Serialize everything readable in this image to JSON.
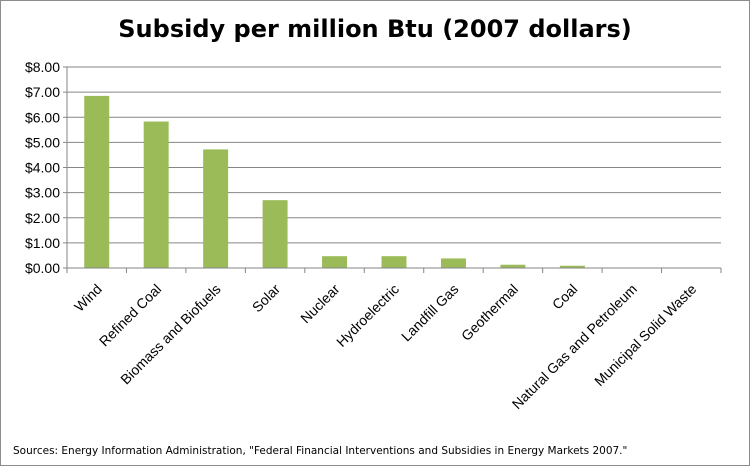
{
  "chart_data": {
    "type": "bar",
    "title": "Subsidy per million Btu (2007 dollars)",
    "categories": [
      "Wind",
      "Refined Coal",
      "Biomass and Biofuels",
      "Solar",
      "Nuclear",
      "Hydroelectric",
      "Landfill Gas",
      "Geothermal",
      "Coal",
      "Natural Gas and Petroleum",
      "Municipal Solid Waste"
    ],
    "values": [
      6.85,
      5.83,
      4.72,
      2.7,
      0.47,
      0.47,
      0.38,
      0.13,
      0.09,
      0.0,
      0.0
    ],
    "ylim": [
      0,
      8
    ],
    "yticks": [
      0,
      1,
      2,
      3,
      4,
      5,
      6,
      7,
      8
    ],
    "ytick_labels": [
      "$0.00",
      "$1.00",
      "$2.00",
      "$3.00",
      "$4.00",
      "$5.00",
      "$6.00",
      "$7.00",
      "$8.00"
    ],
    "xlabel": "",
    "ylabel": "",
    "grid": true,
    "bar_color": "#9bbb59",
    "grid_color": "#868686"
  },
  "source": "Sources: Energy Information  Administration,  \"Federal Financial Interventions and Subsidies in Energy Markets 2007.\""
}
